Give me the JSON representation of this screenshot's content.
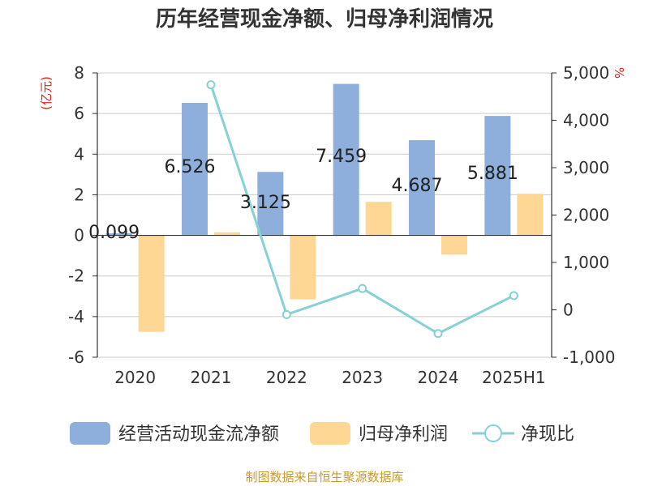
{
  "chart_data": {
    "type": "bar",
    "title": "历年经营现金净额、归母净利润情况",
    "categories": [
      "2020",
      "2021",
      "2022",
      "2023",
      "2024",
      "2025H1"
    ],
    "series": [
      {
        "name": "经营活动现金流净额",
        "type": "bar",
        "axis": "left",
        "color": "#8eaedb",
        "values": [
          0.099,
          6.526,
          3.125,
          7.459,
          4.687,
          5.881
        ],
        "labels": [
          "0.099",
          "6.526",
          "3.125",
          "7.459",
          "4.687",
          "5.881"
        ]
      },
      {
        "name": "归母净利润",
        "type": "bar",
        "axis": "left",
        "color": "#ffd794",
        "values": [
          -4.75,
          0.15,
          -3.15,
          1.65,
          -0.95,
          2.05
        ]
      },
      {
        "name": "净现比",
        "type": "line",
        "axis": "right",
        "color": "#86d1d6",
        "values": [
          null,
          4750,
          -100,
          450,
          -500,
          300
        ]
      }
    ],
    "y_left": {
      "unit": "(亿元)",
      "ylim": [
        -6,
        8
      ],
      "ticks": [
        "-6",
        "-4",
        "-2",
        "0",
        "2",
        "4",
        "6",
        "8"
      ]
    },
    "y_right": {
      "unit": "%",
      "ylim": [
        -1000,
        5000
      ],
      "ticks": [
        "-1,000",
        "0",
        "1,000",
        "2,000",
        "3,000",
        "4,000",
        "5,000"
      ]
    },
    "grid": true,
    "legend": "bottom",
    "source": "制图数据来自恒生聚源数据库"
  }
}
